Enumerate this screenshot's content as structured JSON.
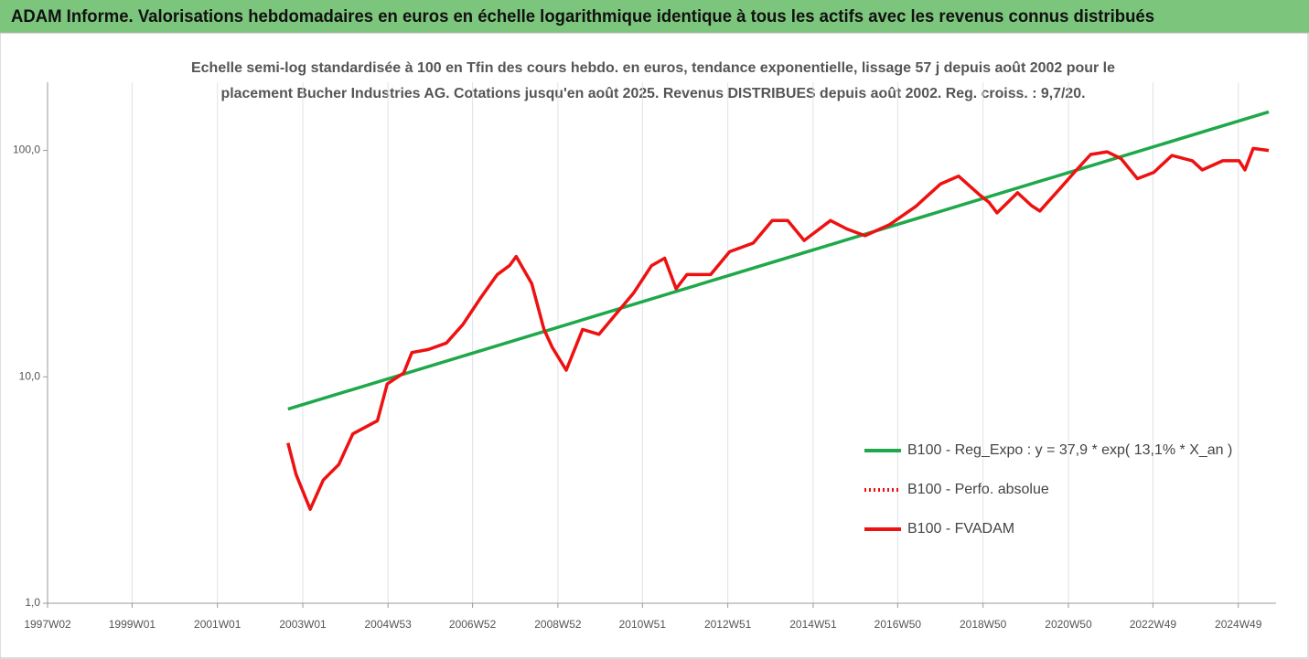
{
  "chart_data": {
    "type": "line",
    "title": "ADAM Informe. Valorisations hebdomadaires en euros en échelle logarithmique identique à tous les actifs avec les revenus connus distribués",
    "subtitle": [
      "Echelle semi-log standardisée à 100 en Tfin des cours hebdo. en euros, tendance exponentielle, lissage 57 j depuis août 2002 pour le",
      "placement Bucher Industries AG. Cotations jusqu'en août 2025. Revenus DISTRIBUES depuis août 2002. Reg. croiss. : 9,7/20."
    ],
    "log_scale": true,
    "ylim": [
      1,
      200
    ],
    "yticks": [
      {
        "value": 1,
        "label": "1,0"
      },
      {
        "value": 10,
        "label": "10,0"
      },
      {
        "value": 100,
        "label": "100,0"
      }
    ],
    "xlim": [
      "1997W02",
      "2025W43"
    ],
    "xticks": [
      "1997W02",
      "1999W01",
      "2001W01",
      "2003W01",
      "2004W53",
      "2006W52",
      "2008W52",
      "2010W51",
      "2012W51",
      "2014W51",
      "2016W50",
      "2018W50",
      "2020W50",
      "2022W49",
      "2024W49"
    ],
    "grid": "x",
    "legend": "right",
    "series": [
      {
        "name": "B100 - Reg_Expo : y = 37,9 * exp( 13,1% *  X_an )",
        "color": "#1fa84a",
        "style": "solid",
        "x": [
          "2002W35",
          "2025W34"
        ],
        "values": [
          7.2,
          148
        ]
      },
      {
        "name": "B100 - Perfo. absolue",
        "color": "#ee1111",
        "style": "dotted",
        "x": [
          "2002W35",
          "2002W45",
          "2003W10",
          "2003W26",
          "2003W45",
          "2004W10",
          "2004W40",
          "2004W52",
          "2005W20",
          "2005W30",
          "2005W50",
          "2006W20",
          "2006W40",
          "2007W10",
          "2007W30",
          "2007W45",
          "2008W01",
          "2008W20",
          "2008W35",
          "2008W45",
          "2009W10",
          "2009W30",
          "2009W50",
          "2010W20",
          "2010W40",
          "2011W10",
          "2011W26",
          "2011W40",
          "2012W01",
          "2012W30",
          "2013W01",
          "2013W30",
          "2014W01",
          "2014W20",
          "2014W40",
          "2015W20",
          "2015W40",
          "2016W10",
          "2016W40",
          "2017W20",
          "2017W50",
          "2018W20",
          "2018W45",
          "2019W05",
          "2019W15",
          "2019W40",
          "2020W05",
          "2020W15",
          "2020W40",
          "2021W05",
          "2021W25",
          "2021W45",
          "2022W10",
          "2022W30",
          "2022W50",
          "2023W20",
          "2023W45",
          "2024W05",
          "2024W30",
          "2024W50",
          "2025W05",
          "2025W15",
          "2025W34"
        ],
        "values": [
          5.1,
          3.7,
          2.6,
          3.5,
          4.1,
          5.6,
          6.4,
          9.3,
          10.4,
          12.8,
          13.2,
          14.1,
          17,
          22.4,
          28.3,
          31,
          34,
          25.8,
          16.2,
          13.5,
          10.7,
          16.2,
          15.4,
          19.2,
          23.4,
          31,
          33.4,
          24.5,
          28.3,
          28.3,
          35.7,
          39,
          49,
          49,
          40,
          49,
          45,
          42,
          47,
          56.6,
          71,
          77,
          64,
          59,
          53,
          65,
          57,
          54,
          68,
          80,
          96,
          98.6,
          92,
          75,
          80,
          95,
          90,
          82,
          90,
          90,
          82,
          102,
          100
        ]
      },
      {
        "name": "B100 - FVADAM",
        "color": "#ee1111",
        "style": "solid",
        "x": [
          "2002W35",
          "2002W45",
          "2003W10",
          "2003W26",
          "2003W45",
          "2004W10",
          "2004W40",
          "2004W52",
          "2005W20",
          "2005W30",
          "2005W50",
          "2006W20",
          "2006W40",
          "2007W10",
          "2007W30",
          "2007W45",
          "2008W01",
          "2008W20",
          "2008W35",
          "2008W45",
          "2009W10",
          "2009W30",
          "2009W50",
          "2010W20",
          "2010W40",
          "2011W10",
          "2011W26",
          "2011W40",
          "2012W01",
          "2012W30",
          "2013W01",
          "2013W30",
          "2014W01",
          "2014W20",
          "2014W40",
          "2015W20",
          "2015W40",
          "2016W10",
          "2016W40",
          "2017W20",
          "2017W50",
          "2018W20",
          "2018W45",
          "2019W05",
          "2019W15",
          "2019W40",
          "2020W05",
          "2020W15",
          "2020W40",
          "2021W05",
          "2021W25",
          "2021W45",
          "2022W10",
          "2022W30",
          "2022W50",
          "2023W20",
          "2023W45",
          "2024W05",
          "2024W30",
          "2024W50",
          "2025W05",
          "2025W15",
          "2025W34"
        ],
        "values": [
          5.1,
          3.7,
          2.6,
          3.5,
          4.1,
          5.6,
          6.4,
          9.3,
          10.4,
          12.8,
          13.2,
          14.1,
          17,
          22.4,
          28.3,
          31,
          34,
          25.8,
          16.2,
          13.5,
          10.7,
          16.2,
          15.4,
          19.2,
          23.4,
          31,
          33.4,
          24.5,
          28.3,
          28.3,
          35.7,
          39,
          49,
          49,
          40,
          49,
          45,
          42,
          47,
          56.6,
          71,
          77,
          64,
          59,
          53,
          65,
          57,
          54,
          68,
          80,
          96,
          98.6,
          92,
          75,
          80,
          95,
          90,
          82,
          90,
          90,
          82,
          102,
          100
        ]
      }
    ]
  }
}
